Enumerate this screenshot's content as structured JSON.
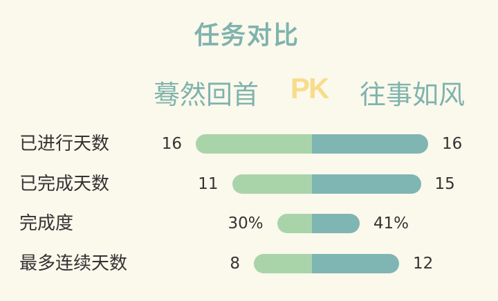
{
  "title": "任务对比",
  "left_player": "蓦然回首",
  "versus": "PK",
  "right_player": "往事如风",
  "colors": {
    "background": "#fbf8ec",
    "title": "#7fb3ad",
    "left_bar": "#a9d4aa",
    "right_bar": "#7fb5b3",
    "pk": "#f7dd8a"
  },
  "rows": [
    {
      "label": "已进行天数",
      "left_value": 16,
      "right_value": 16,
      "left_text": "16",
      "right_text": "16",
      "max": 16
    },
    {
      "label": "已完成天数",
      "left_value": 11,
      "right_value": 15,
      "left_text": "11",
      "right_text": "15",
      "max": 16
    },
    {
      "label": "完成度",
      "left_value": 30,
      "right_value": 41,
      "left_text": "30%",
      "right_text": "41%",
      "max": 100
    },
    {
      "label": "最多连续天数",
      "left_value": 8,
      "right_value": 12,
      "left_text": "8",
      "right_text": "12",
      "max": 16
    }
  ]
}
